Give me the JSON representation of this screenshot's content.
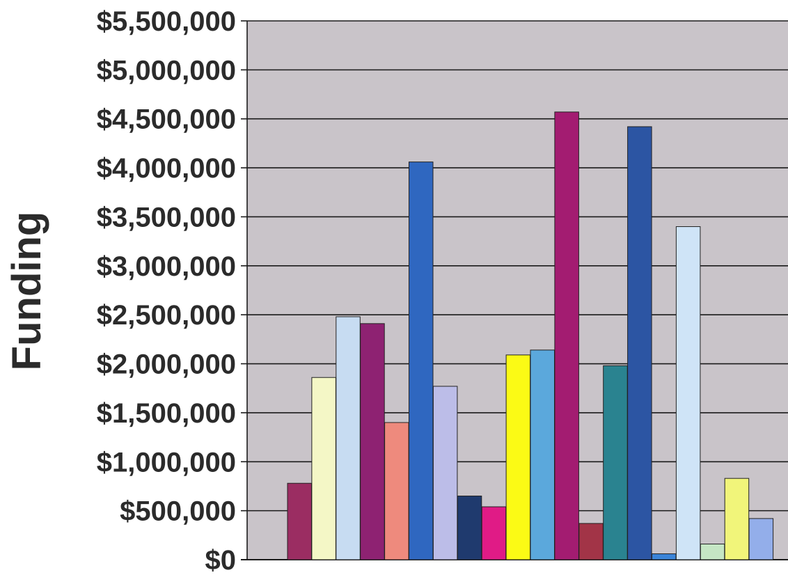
{
  "chart_data": {
    "type": "bar",
    "title": "",
    "xlabel": "",
    "ylabel": "Funding",
    "ylim": [
      0,
      5500000
    ],
    "y_ticks": [
      0,
      500000,
      1000000,
      1500000,
      2000000,
      2500000,
      3000000,
      3500000,
      4000000,
      4500000,
      5000000,
      5500000
    ],
    "y_tick_labels": [
      "$0",
      "$500,000",
      "$1,000,000",
      "$1,500,000",
      "$2,000,000",
      "$2,500,000",
      "$3,000,000",
      "$3,500,000",
      "$4,000,000",
      "$4,500,000",
      "$5,000,000",
      "$5,500,000"
    ],
    "grid": true,
    "legend": "none",
    "plot_background": "#c9c4c9",
    "bars": [
      {
        "value": 780000,
        "color": "#9b2d62"
      },
      {
        "value": 1860000,
        "color": "#f4f7c6"
      },
      {
        "value": 2480000,
        "color": "#c7dcf2"
      },
      {
        "value": 2410000,
        "color": "#8e2272"
      },
      {
        "value": 1400000,
        "color": "#ee8a7d"
      },
      {
        "value": 4060000,
        "color": "#2f67c0"
      },
      {
        "value": 1770000,
        "color": "#bcbde8"
      },
      {
        "value": 650000,
        "color": "#1f3a6e"
      },
      {
        "value": 540000,
        "color": "#e01b86"
      },
      {
        "value": 2090000,
        "color": "#fbfa15"
      },
      {
        "value": 2140000,
        "color": "#5ba8dc"
      },
      {
        "value": 4570000,
        "color": "#a31c71"
      },
      {
        "value": 370000,
        "color": "#a23447"
      },
      {
        "value": 1980000,
        "color": "#2a8390"
      },
      {
        "value": 4420000,
        "color": "#2c55a3"
      },
      {
        "value": 60000,
        "color": "#3a84d8"
      },
      {
        "value": 3400000,
        "color": "#cfe4f7"
      },
      {
        "value": 160000,
        "color": "#c5e6c4"
      },
      {
        "value": 830000,
        "color": "#f1f57a"
      },
      {
        "value": 420000,
        "color": "#93aeea"
      }
    ]
  }
}
